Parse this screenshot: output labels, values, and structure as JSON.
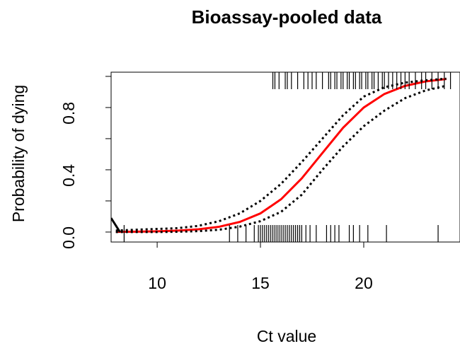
{
  "chart_data": {
    "type": "line",
    "title": "Bioassay-pooled data",
    "xlabel": "Ct value",
    "ylabel": "Probability of dying",
    "xlim": [
      7.77,
      24.66
    ],
    "ylim": [
      -0.064,
      1.027
    ],
    "xticks": [
      10,
      15,
      20
    ],
    "yticks": [
      {
        "value": 0,
        "label": "0.0"
      },
      {
        "value": 0.2,
        "label": null
      },
      {
        "value": 0.4,
        "label": "0.4"
      },
      {
        "value": 0.6,
        "label": null
      },
      {
        "value": 0.8,
        "label": "0.8"
      },
      {
        "value": 1.0,
        "label": null
      }
    ],
    "series": [
      {
        "color": "#ff0000",
        "linestyle": "solid",
        "width": 3,
        "x": [
          8,
          9,
          10,
          11,
          12,
          13,
          14,
          15,
          16,
          17,
          18,
          19,
          20,
          21,
          22,
          23,
          24
        ],
        "values": [
          0.0012,
          0.0024,
          0.0047,
          0.0091,
          0.0177,
          0.034,
          0.065,
          0.12,
          0.211,
          0.345,
          0.508,
          0.67,
          0.8,
          0.887,
          0.939,
          0.968,
          0.983
        ]
      },
      {
        "color": "#000000",
        "linestyle": "dotted",
        "width": 3,
        "x": [
          8,
          9,
          10,
          11,
          12,
          13,
          14,
          15,
          16,
          17,
          18,
          19,
          20,
          21,
          22,
          23,
          24
        ],
        "values": [
          0.01,
          0.015,
          0.02,
          0.025,
          0.04,
          0.07,
          0.12,
          0.2,
          0.31,
          0.45,
          0.6,
          0.75,
          0.87,
          0.93,
          0.96,
          0.975,
          0.985
        ]
      },
      {
        "color": "#000000",
        "linestyle": "dotted",
        "width": 3,
        "x": [
          8,
          9,
          10,
          11,
          12,
          13,
          14,
          15,
          16,
          17,
          18,
          19,
          20,
          21,
          22,
          23,
          24
        ],
        "values": [
          0,
          0,
          0,
          0.002,
          0.006,
          0.015,
          0.035,
          0.07,
          0.13,
          0.24,
          0.4,
          0.55,
          0.68,
          0.78,
          0.86,
          0.91,
          0.94
        ]
      },
      {
        "color": "#000000",
        "linestyle": "solid",
        "width": 3,
        "x": [
          7.77,
          8.2
        ],
        "values": [
          0.09,
          0
        ]
      }
    ],
    "rug_top": [
      15.6,
      15.7,
      15.9,
      16.2,
      16.3,
      16.5,
      16.8,
      17.1,
      17.3,
      17.5,
      17.7,
      18.0,
      18.3,
      18.4,
      18.6,
      18.7,
      18.9,
      19.0,
      19.2,
      19.3,
      19.5,
      19.6,
      19.8,
      19.9,
      20.1,
      20.2,
      20.4,
      20.5,
      20.7,
      20.9,
      21.0,
      21.2,
      21.4,
      21.6,
      21.8,
      22.0,
      22.2,
      22.5,
      22.8,
      23.0,
      23.3,
      23.6,
      23.9,
      24.2
    ],
    "rug_bottom": [
      8.4,
      13.5,
      13.9,
      14.3,
      14.7,
      14.9,
      15.0,
      15.1,
      15.2,
      15.3,
      15.4,
      15.5,
      15.6,
      15.7,
      15.8,
      15.9,
      16.0,
      16.1,
      16.2,
      16.3,
      16.4,
      16.5,
      16.6,
      16.7,
      16.8,
      16.9,
      17.0,
      17.2,
      17.4,
      17.7,
      18.2,
      18.4,
      18.6,
      18.8,
      19.3,
      19.5,
      19.8,
      20.2,
      21.1,
      23.6
    ]
  }
}
